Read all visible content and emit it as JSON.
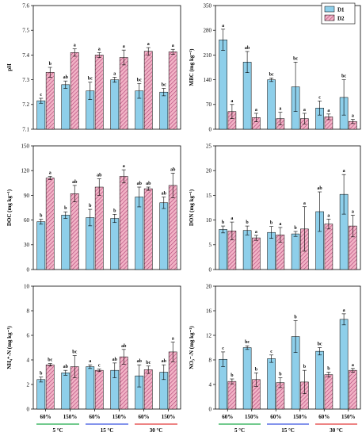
{
  "colors": {
    "d1": "#8ECFEA",
    "d2_fill": "#F2B3C6",
    "d2_hatch": "#B2487A",
    "temp_5": "#1DAA4A",
    "temp_15": "#3A55E0",
    "temp_30": "#E23A3A"
  },
  "legend": {
    "d1": "D1",
    "d2": "D2"
  },
  "x_groups": {
    "moisture": [
      "60%",
      "150%",
      "60%",
      "150%",
      "60%",
      "150%"
    ],
    "temperatures": [
      "5 °C",
      "15 °C",
      "30 °C"
    ]
  },
  "chart_data": [
    {
      "id": "ph",
      "type": "bar",
      "ylabel": "pH",
      "ylim": [
        7.1,
        7.6
      ],
      "yticks": [
        "7.1",
        "7.2",
        "7.3",
        "7.4",
        "7.5",
        "7.6"
      ],
      "series": [
        {
          "name": "D1",
          "values": [
            7.215,
            7.28,
            7.255,
            7.3,
            7.255,
            7.25
          ],
          "err": [
            0.01,
            0.015,
            0.035,
            0.01,
            0.03,
            0.015
          ],
          "labels": [
            "c",
            "ab",
            "bc",
            "a",
            "bc",
            "bc"
          ]
        },
        {
          "name": "D2",
          "values": [
            7.33,
            7.41,
            7.4,
            7.39,
            7.415,
            7.413
          ],
          "err": [
            0.02,
            0.015,
            0.01,
            0.03,
            0.015,
            0.01
          ],
          "labels": [
            "b",
            "a",
            "a",
            "a",
            "a",
            "a"
          ]
        }
      ]
    },
    {
      "id": "mbc",
      "type": "bar",
      "ylabel": "MBC (mg kg⁻¹)",
      "ylim": [
        0,
        350
      ],
      "yticks": [
        "0",
        "70",
        "140",
        "210",
        "280",
        "350"
      ],
      "series": [
        {
          "name": "D1",
          "values": [
            253,
            190,
            140,
            120,
            60,
            90
          ],
          "err": [
            30,
            30,
            5,
            70,
            20,
            50
          ],
          "labels": [
            "a",
            "ab",
            "bc",
            "bc",
            "c",
            "bc"
          ]
        },
        {
          "name": "D2",
          "values": [
            50,
            33,
            30,
            30,
            35,
            22
          ],
          "err": [
            20,
            12,
            18,
            15,
            8,
            6
          ],
          "labels": [
            "a",
            "a",
            "a",
            "a",
            "a",
            "a"
          ]
        }
      ]
    },
    {
      "id": "doc",
      "type": "bar",
      "ylabel": "DOC (mg kg⁻¹)",
      "ylim": [
        0,
        150
      ],
      "yticks": [
        "0",
        "30",
        "60",
        "90",
        "120",
        "150"
      ],
      "series": [
        {
          "name": "D1",
          "values": [
            58,
            66,
            63,
            62,
            88,
            81
          ],
          "err": [
            3,
            4,
            10,
            5,
            12,
            7
          ],
          "labels": [
            "b",
            "b",
            "b",
            "b",
            "ab",
            "ab"
          ]
        },
        {
          "name": "D2",
          "values": [
            111,
            92,
            100,
            113,
            98,
            102
          ],
          "err": [
            2,
            10,
            10,
            8,
            2,
            15
          ],
          "labels": [
            "a",
            "ab",
            "ab",
            "a",
            "ab",
            "ab"
          ]
        }
      ]
    },
    {
      "id": "don",
      "type": "bar",
      "ylabel": "DON (mg kg⁻¹)",
      "ylim": [
        0,
        25
      ],
      "yticks": [
        "0",
        "5",
        "10",
        "15",
        "20",
        "25"
      ],
      "series": [
        {
          "name": "D1",
          "values": [
            8.1,
            7.9,
            7.5,
            7.2,
            11.7,
            15.2
          ],
          "err": [
            0.7,
            0.9,
            1.2,
            0.5,
            4.0,
            4.0
          ],
          "labels": [
            "b",
            "b",
            "b",
            "b",
            "ab",
            "a"
          ]
        },
        {
          "name": "D2",
          "values": [
            7.8,
            6.4,
            7.0,
            8.2,
            9.2,
            8.8
          ],
          "err": [
            1.8,
            0.5,
            1.5,
            4.5,
            1.0,
            2.2
          ],
          "labels": [
            "a",
            "a",
            "a",
            "a",
            "a",
            "a"
          ]
        }
      ]
    },
    {
      "id": "nh4",
      "type": "bar",
      "ylabel": "NH₄⁺-N (mg kg⁻¹)",
      "ylim": [
        0,
        10
      ],
      "yticks": [
        "0",
        "2",
        "4",
        "6",
        "8",
        "10"
      ],
      "series": [
        {
          "name": "D1",
          "values": [
            2.4,
            2.95,
            3.45,
            3.15,
            2.7,
            3.0
          ],
          "err": [
            0.2,
            0.2,
            0.15,
            0.6,
            0.9,
            0.6
          ],
          "labels": [
            "b",
            "ab",
            "a",
            "ab",
            "ab",
            "ab"
          ]
        },
        {
          "name": "D2",
          "values": [
            3.6,
            3.45,
            3.15,
            4.25,
            3.2,
            4.65
          ],
          "err": [
            0.1,
            0.9,
            0.1,
            0.6,
            0.3,
            0.8
          ],
          "labels": [
            "bc",
            "bc",
            "c",
            "ab",
            "bc",
            "a"
          ]
        }
      ]
    },
    {
      "id": "no3",
      "type": "bar",
      "ylabel": "NO₃⁻-N (mg kg⁻¹)",
      "ylim": [
        0,
        20
      ],
      "yticks": [
        "0",
        "4",
        "8",
        "12",
        "16",
        "20"
      ],
      "series": [
        {
          "name": "D1",
          "values": [
            8.1,
            10.0,
            8.2,
            11.8,
            9.4,
            14.6
          ],
          "err": [
            1.2,
            0.3,
            0.6,
            2.6,
            0.6,
            0.9
          ],
          "labels": [
            "c",
            "bc",
            "c",
            "b",
            "bc",
            "a"
          ]
        },
        {
          "name": "D2",
          "values": [
            4.5,
            4.8,
            4.3,
            4.4,
            5.6,
            6.3
          ],
          "err": [
            0.4,
            1.1,
            0.8,
            1.9,
            0.4,
            0.3
          ],
          "labels": [
            "b",
            "b",
            "b",
            "b",
            "b",
            "a"
          ]
        }
      ]
    }
  ]
}
